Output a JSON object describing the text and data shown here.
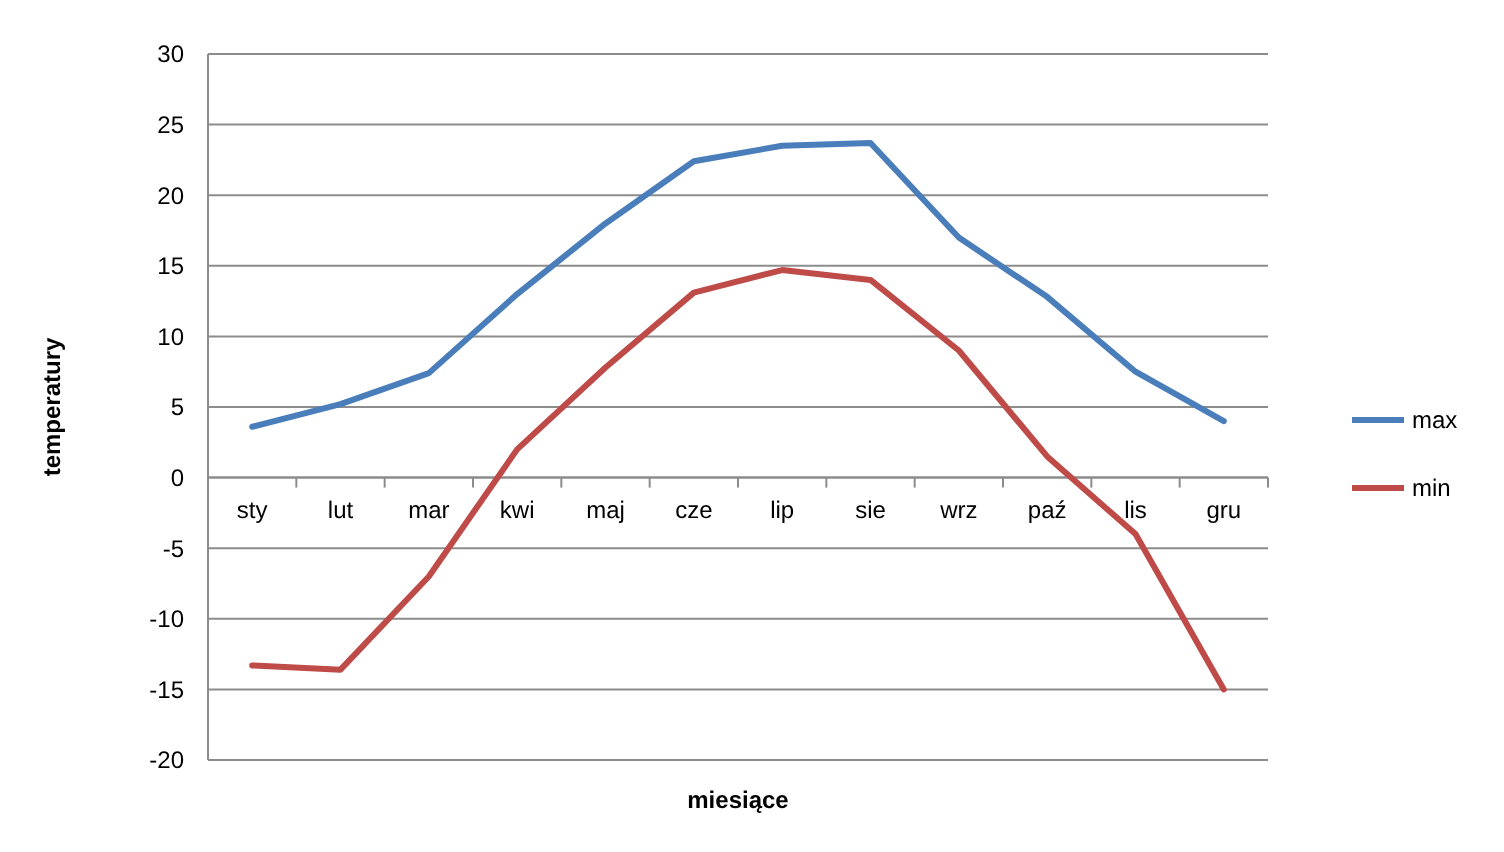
{
  "chart_data": {
    "type": "line",
    "xlabel": "miesiące",
    "ylabel": "temperatury",
    "categories": [
      "sty",
      "lut",
      "mar",
      "kwi",
      "maj",
      "cze",
      "lip",
      "sie",
      "wrz",
      "paź",
      "lis",
      "gru"
    ],
    "series": [
      {
        "name": "max",
        "color": "#4a7ebb",
        "values": [
          3.6,
          5.2,
          7.4,
          13,
          18,
          22.4,
          23.5,
          23.7,
          17,
          12.8,
          7.5,
          4
        ]
      },
      {
        "name": "min",
        "color": "#be4b48",
        "values": [
          -13.3,
          -13.6,
          -7,
          2,
          7.8,
          13.1,
          14.7,
          14,
          9,
          1.5,
          -4,
          -15
        ]
      }
    ],
    "ylim": [
      -20,
      30
    ],
    "yticks": [
      -20,
      -15,
      -10,
      -5,
      0,
      5,
      10,
      15,
      20,
      25,
      30
    ],
    "grid": "y",
    "legend": "right",
    "marker": "none",
    "line_style": "solid"
  }
}
